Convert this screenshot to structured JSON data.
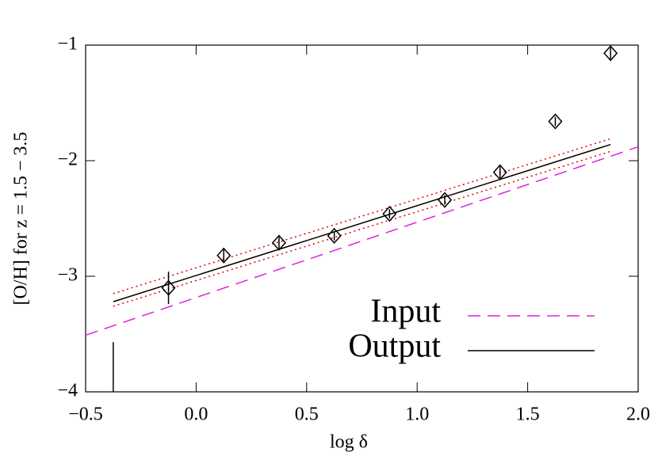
{
  "chart_data": {
    "type": "scatter",
    "x_label": "log δ",
    "y_label": "[O/H] for z = 1.5 − 3.5",
    "xlim": [
      -0.5,
      2.0
    ],
    "ylim": [
      -4,
      -1
    ],
    "xticks": [
      {
        "value": -0.5,
        "label": "−0.5"
      },
      {
        "value": 0,
        "label": "0.0"
      },
      {
        "value": 0.5,
        "label": "0.5"
      },
      {
        "value": 1,
        "label": "1.0"
      },
      {
        "value": 1.5,
        "label": "1.5"
      },
      {
        "value": 2,
        "label": "2.0"
      }
    ],
    "yticks": [
      {
        "value": -1,
        "label": "−1"
      },
      {
        "value": -2,
        "label": "−2"
      },
      {
        "value": -3,
        "label": "−3"
      },
      {
        "value": -4,
        "label": "−4"
      }
    ],
    "points": {
      "color": "#000000",
      "x": [
        -0.125,
        0.125,
        0.375,
        0.625,
        0.875,
        1.125,
        1.375,
        1.625,
        1.875
      ],
      "values": [
        -3.1,
        -2.82,
        -2.71,
        -2.65,
        -2.46,
        -2.34,
        -2.1,
        -1.66,
        -1.07
      ],
      "errors": [
        0.14,
        0.05,
        0.05,
        0.04,
        0.04,
        0.04,
        0.05,
        0.04,
        0.05
      ]
    },
    "clipped_error_bar": {
      "x": -0.375,
      "y_top": -3.57
    },
    "lines": [
      {
        "name": "Input",
        "color": "#e020e0",
        "dash": "dashed",
        "x": [
          -0.5,
          2.0
        ],
        "values": [
          -3.51,
          -1.88
        ]
      },
      {
        "name": "Output",
        "color": "#000000",
        "dash": "solid",
        "x": [
          -0.375,
          1.875
        ],
        "values": [
          -3.22,
          -1.86
        ]
      },
      {
        "color": "#e00000",
        "dash": "dotted",
        "x": [
          -0.375,
          1.875
        ],
        "values": [
          -3.15,
          -1.81
        ]
      },
      {
        "color": "#e00000",
        "dash": "dotted",
        "x": [
          -0.375,
          1.875
        ],
        "values": [
          -3.26,
          -1.92
        ]
      }
    ]
  }
}
